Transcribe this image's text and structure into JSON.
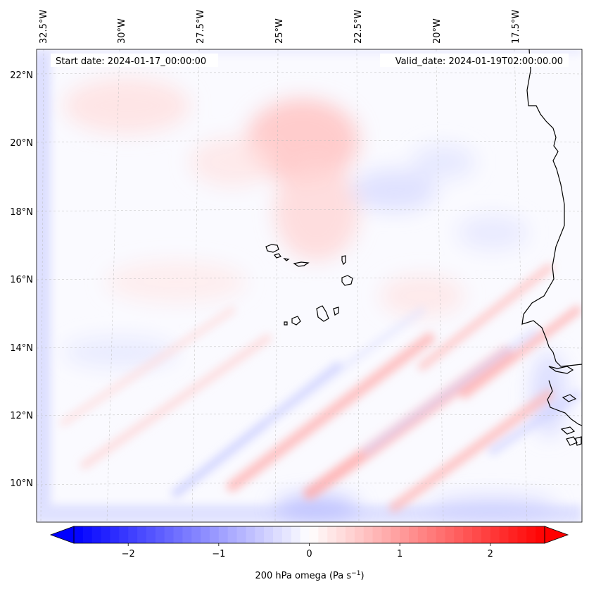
{
  "header": {
    "start_date": "Start date: 2024-01-17_00:00:00",
    "valid_date": "Valid_date: 2024-01-19T02:00:00.00"
  },
  "lon_labels": [
    "32.5°W",
    "30°W",
    "27.5°W",
    "25°W",
    "22.5°W",
    "20°W",
    "17.5°W"
  ],
  "lat_labels": [
    "22°N",
    "20°N",
    "18°N",
    "16°N",
    "14°N",
    "12°N",
    "10°N"
  ],
  "colorbar": {
    "ticks": [
      "−2",
      "−1",
      "0",
      "1",
      "2"
    ],
    "tick_values": [
      -2,
      -1,
      0,
      1,
      2
    ],
    "range": [
      -2.6,
      2.6
    ],
    "label": "200 hPa omega (Pa s",
    "label_exp": "−1",
    "label_close": ")",
    "colors": {
      "min": "#0000ff",
      "mid": "#ffffff",
      "max": "#ff0000"
    }
  }
}
